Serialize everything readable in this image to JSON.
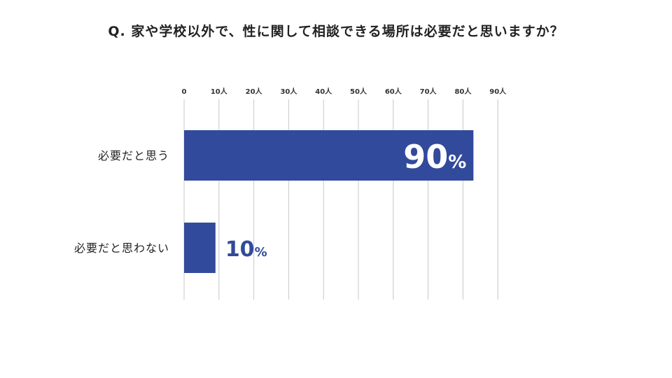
{
  "title": "Q. 家や学校以外で、性に関して相談できる場所は必要だと思いますか？",
  "colors": {
    "bar": "#324a9b",
    "grid": "#c8c8c8",
    "label_outside": "#324a9b",
    "label_inside": "#ffffff"
  },
  "chart_data": {
    "type": "bar",
    "orientation": "horizontal",
    "title": "Q. 家や学校以外で、性に関して相談できる場所は必要だと思いますか？",
    "categories": [
      "必要だと思う",
      "必要だと思わない"
    ],
    "values": [
      83,
      9
    ],
    "data_labels": [
      "90%",
      "10%"
    ],
    "xlim": [
      0,
      90
    ],
    "x_ticks": [
      "0",
      "10人",
      "20人",
      "30人",
      "40人",
      "50人",
      "60人",
      "70人",
      "80人",
      "90人"
    ],
    "tick_step": 10,
    "grid": true,
    "legend": "none"
  }
}
